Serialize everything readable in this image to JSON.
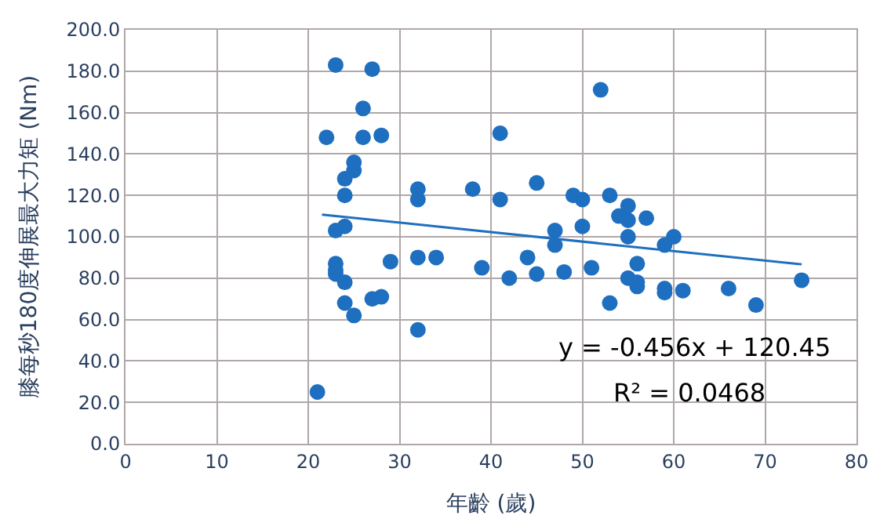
{
  "chart_data": {
    "type": "scatter",
    "xlabel": "年齡 (歲)",
    "ylabel": "膝每秒180度伸展最大力矩 (Nm)",
    "xlim": [
      0,
      80
    ],
    "xticks": [
      0,
      10,
      20,
      30,
      40,
      50,
      60,
      70,
      80
    ],
    "ylim": [
      0,
      200
    ],
    "yticks": [
      {
        "value": 0,
        "label": "0.0"
      },
      {
        "value": 20,
        "label": "20.0"
      },
      {
        "value": 40,
        "label": "40.0"
      },
      {
        "value": 60,
        "label": "60.0"
      },
      {
        "value": 80,
        "label": "80.0"
      },
      {
        "value": 100,
        "label": "100.0"
      },
      {
        "value": 120,
        "label": "120.0"
      },
      {
        "value": 140,
        "label": "140.0"
      },
      {
        "value": 160,
        "label": "160.0"
      },
      {
        "value": 180,
        "label": "180.0"
      },
      {
        "value": 200,
        "label": "200.0"
      }
    ],
    "grid": true,
    "annotations": [
      "y = -0.456x + 120.45",
      "R² = 0.0468"
    ],
    "series": [
      {
        "marker": "circle",
        "color": "#1f6fc0",
        "x": [
          21,
          22,
          23,
          24,
          24,
          25,
          25,
          26,
          26,
          27,
          28,
          24,
          23,
          23,
          23,
          23,
          24,
          24,
          25,
          27,
          28,
          29,
          32,
          32,
          32,
          32,
          34,
          38,
          39,
          41,
          41,
          42,
          44,
          45,
          45,
          47,
          47,
          48,
          49,
          50,
          50,
          51,
          52,
          53,
          53,
          54,
          55,
          55,
          55,
          55,
          56,
          56,
          56,
          57,
          59,
          59,
          59,
          60,
          61,
          66,
          69,
          74
        ],
        "values": [
          25,
          148,
          183,
          120,
          128,
          136,
          132,
          162,
          148,
          181,
          149,
          105,
          103,
          87,
          84,
          82,
          78,
          68,
          62,
          70,
          71,
          88,
          55,
          123,
          118,
          90,
          90,
          123,
          85,
          150,
          118,
          80,
          90,
          126,
          82,
          103,
          96,
          83,
          120,
          118,
          105,
          85,
          171,
          68,
          120,
          110,
          115,
          108,
          100,
          80,
          87,
          76,
          78,
          109,
          96,
          75,
          73,
          100,
          74,
          75,
          67,
          79
        ]
      },
      {
        "type": "line",
        "color": "#1f6fc0",
        "x": [
          21.5,
          74
        ],
        "values": [
          110.7,
          86.7
        ],
        "marker": "none"
      }
    ]
  }
}
